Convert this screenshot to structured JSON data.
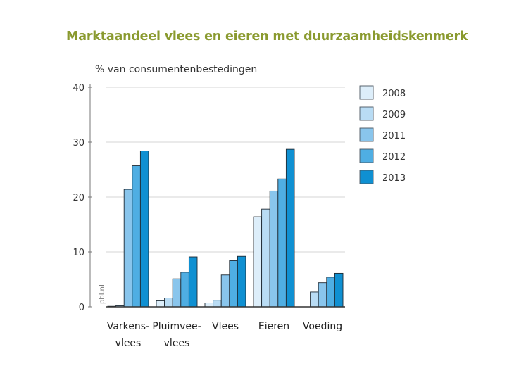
{
  "chart_data": {
    "type": "bar",
    "title": "Marktaandeel vlees en eieren met duurzaamheidskenmerk",
    "ylabel": "% van consumentenbestedingen",
    "xlabel": "",
    "ylim": [
      0,
      40
    ],
    "yticks": [
      "0",
      "10",
      "20",
      "30",
      "40"
    ],
    "categories": [
      "Varkens-vlees",
      "Pluimvee-vlees",
      "Vlees",
      "Eieren",
      "Voeding"
    ],
    "category_lines": [
      [
        "Varkens-",
        "vlees"
      ],
      [
        "Pluimvee-",
        "vlees"
      ],
      [
        "Vlees"
      ],
      [
        "Eieren"
      ],
      [
        "Voeding"
      ]
    ],
    "series": [
      {
        "name": "2008",
        "color": "#ddeefa",
        "values": [
          0.1,
          1.1,
          0.7,
          16.4,
          null
        ]
      },
      {
        "name": "2009",
        "color": "#b9dcf4",
        "values": [
          0.2,
          1.6,
          1.2,
          17.8,
          2.7
        ]
      },
      {
        "name": "2011",
        "color": "#89c5ec",
        "values": [
          21.4,
          5.1,
          5.8,
          21.1,
          4.4
        ]
      },
      {
        "name": "2012",
        "color": "#4faee3",
        "values": [
          25.7,
          6.3,
          8.4,
          23.3,
          5.4
        ]
      },
      {
        "name": "2013",
        "color": "#0f90d2",
        "values": [
          28.4,
          9.1,
          9.2,
          28.7,
          6.1
        ]
      }
    ],
    "grid": true,
    "legend_position": "right",
    "watermark": "pbl.nl"
  }
}
